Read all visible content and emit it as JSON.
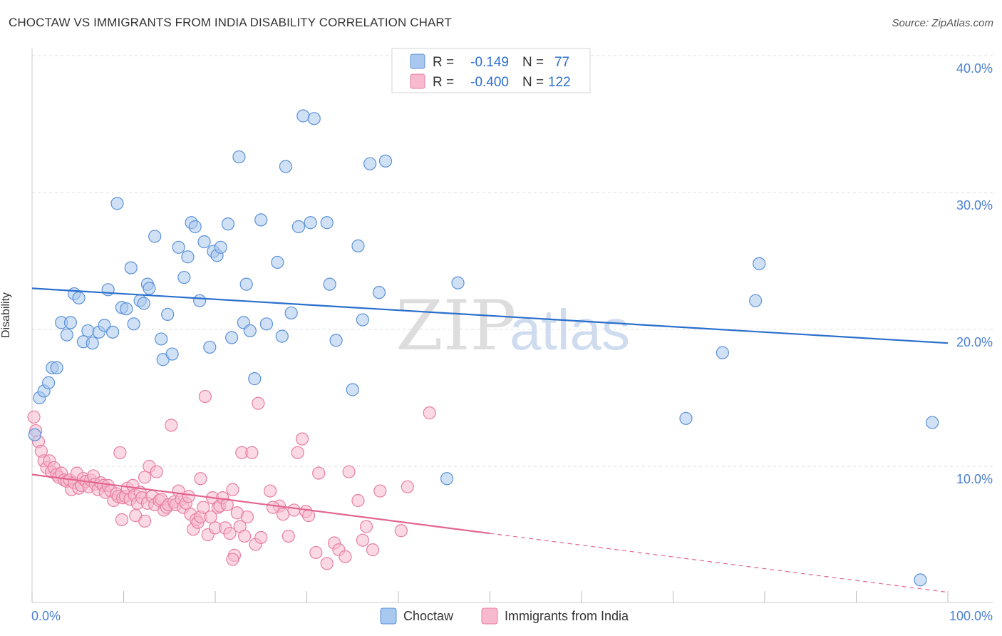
{
  "title": "CHOCTAW VS IMMIGRANTS FROM INDIA DISABILITY CORRELATION CHART",
  "source": "Source: ZipAtlas.com",
  "watermark": {
    "zip": "ZIP",
    "atlas": "atlas"
  },
  "colors": {
    "blue_fill": "#a9c8ef",
    "blue_stroke": "#5b91d8",
    "blue_line": "#2a6fcc",
    "pink_fill": "#f6b9cd",
    "pink_stroke": "#e87ea0",
    "pink_line": "#e26590",
    "grid": "#dcdcdc",
    "axis_text": "#4a7fd4"
  },
  "legend": {
    "rows": [
      {
        "r_label": "R =",
        "r_value": "-0.149",
        "n_label": "N =",
        "n_value": "77"
      },
      {
        "r_label": "R =",
        "r_value": "-0.400",
        "n_label": "N =",
        "n_value": "122"
      }
    ]
  },
  "bottom_legend": {
    "series_a": "Choctaw",
    "series_b": "Immigrants from India"
  },
  "chart_data": {
    "type": "scatter",
    "ylabel": "Disability",
    "xlabel": "",
    "xlim": [
      0,
      100
    ],
    "ylim": [
      0,
      42
    ],
    "x_tick_labels": {
      "left": "0.0%",
      "right": "100.0%"
    },
    "y_ticks": [
      10,
      20,
      30,
      40
    ],
    "y_tick_labels": [
      "10.0%",
      "20.0%",
      "30.0%",
      "40.0%"
    ],
    "series": [
      {
        "name": "Choctaw",
        "trend": {
          "x": [
            0,
            100
          ],
          "y": [
            23.0,
            19.0
          ],
          "solid_until": 100
        },
        "points": [
          [
            0.3,
            12.3
          ],
          [
            0.8,
            15.0
          ],
          [
            1.3,
            15.5
          ],
          [
            1.8,
            16.1
          ],
          [
            2.2,
            17.2
          ],
          [
            2.7,
            17.2
          ],
          [
            3.2,
            20.5
          ],
          [
            3.8,
            19.6
          ],
          [
            4.2,
            20.5
          ],
          [
            4.6,
            22.6
          ],
          [
            5.1,
            22.3
          ],
          [
            5.6,
            19.1
          ],
          [
            6.1,
            19.9
          ],
          [
            6.6,
            19.0
          ],
          [
            7.3,
            19.8
          ],
          [
            7.9,
            20.3
          ],
          [
            8.3,
            22.9
          ],
          [
            8.8,
            19.8
          ],
          [
            9.3,
            29.2
          ],
          [
            9.8,
            21.6
          ],
          [
            10.3,
            21.5
          ],
          [
            10.8,
            24.5
          ],
          [
            11.1,
            20.4
          ],
          [
            11.8,
            22.1
          ],
          [
            12.2,
            21.9
          ],
          [
            12.6,
            23.3
          ],
          [
            12.8,
            23.0
          ],
          [
            13.4,
            26.8
          ],
          [
            14.1,
            19.3
          ],
          [
            14.3,
            17.8
          ],
          [
            14.8,
            21.1
          ],
          [
            15.3,
            18.2
          ],
          [
            16.0,
            26.0
          ],
          [
            16.6,
            23.8
          ],
          [
            17.0,
            25.3
          ],
          [
            17.4,
            27.8
          ],
          [
            17.8,
            27.5
          ],
          [
            18.3,
            22.1
          ],
          [
            18.8,
            26.4
          ],
          [
            19.4,
            18.7
          ],
          [
            19.8,
            25.7
          ],
          [
            20.2,
            25.4
          ],
          [
            20.6,
            26.0
          ],
          [
            21.4,
            27.7
          ],
          [
            21.8,
            19.4
          ],
          [
            22.6,
            32.6
          ],
          [
            23.1,
            20.5
          ],
          [
            23.4,
            23.3
          ],
          [
            23.8,
            19.9
          ],
          [
            24.3,
            16.4
          ],
          [
            25.0,
            28.0
          ],
          [
            25.6,
            20.4
          ],
          [
            26.8,
            24.9
          ],
          [
            27.3,
            19.5
          ],
          [
            27.7,
            31.9
          ],
          [
            28.3,
            21.2
          ],
          [
            29.1,
            27.5
          ],
          [
            29.6,
            35.6
          ],
          [
            30.4,
            27.8
          ],
          [
            30.8,
            35.4
          ],
          [
            32.2,
            27.8
          ],
          [
            32.5,
            23.3
          ],
          [
            33.2,
            19.2
          ],
          [
            35.0,
            15.6
          ],
          [
            35.6,
            26.1
          ],
          [
            36.1,
            20.7
          ],
          [
            36.9,
            32.1
          ],
          [
            37.9,
            22.7
          ],
          [
            38.6,
            32.3
          ],
          [
            45.3,
            9.1
          ],
          [
            46.5,
            23.4
          ],
          [
            71.4,
            13.5
          ],
          [
            75.4,
            18.3
          ],
          [
            79.0,
            22.1
          ],
          [
            79.4,
            24.8
          ],
          [
            98.3,
            13.2
          ],
          [
            97.0,
            1.7
          ]
        ]
      },
      {
        "name": "Immigrants from India",
        "trend": {
          "x": [
            0,
            100
          ],
          "y": [
            9.4,
            0.8
          ],
          "solid_until": 50
        },
        "points": [
          [
            0.2,
            13.6
          ],
          [
            0.4,
            12.6
          ],
          [
            0.7,
            11.8
          ],
          [
            1.0,
            11.1
          ],
          [
            1.3,
            10.4
          ],
          [
            1.6,
            9.9
          ],
          [
            1.9,
            10.4
          ],
          [
            2.1,
            9.6
          ],
          [
            2.4,
            9.9
          ],
          [
            2.7,
            9.4
          ],
          [
            2.9,
            9.2
          ],
          [
            3.2,
            9.5
          ],
          [
            3.5,
            9.0
          ],
          [
            3.8,
            8.9
          ],
          [
            4.1,
            9.0
          ],
          [
            4.3,
            8.3
          ],
          [
            4.6,
            8.8
          ],
          [
            4.9,
            9.5
          ],
          [
            5.1,
            8.4
          ],
          [
            5.4,
            8.6
          ],
          [
            5.6,
            9.1
          ],
          [
            5.9,
            8.9
          ],
          [
            6.2,
            8.5
          ],
          [
            6.4,
            9.0
          ],
          [
            6.7,
            9.3
          ],
          [
            6.9,
            8.7
          ],
          [
            7.2,
            8.3
          ],
          [
            7.5,
            8.8
          ],
          [
            7.8,
            8.6
          ],
          [
            8.0,
            8.1
          ],
          [
            8.3,
            8.6
          ],
          [
            8.6,
            8.2
          ],
          [
            8.9,
            7.5
          ],
          [
            9.2,
            8.0
          ],
          [
            9.4,
            7.8
          ],
          [
            9.6,
            11.0
          ],
          [
            9.9,
            7.7
          ],
          [
            10.2,
            7.8
          ],
          [
            10.4,
            8.4
          ],
          [
            10.7,
            7.6
          ],
          [
            11.0,
            8.6
          ],
          [
            11.2,
            7.9
          ],
          [
            11.5,
            7.3
          ],
          [
            11.8,
            8.1
          ],
          [
            12.0,
            7.7
          ],
          [
            12.3,
            9.2
          ],
          [
            12.6,
            7.3
          ],
          [
            12.8,
            10.0
          ],
          [
            13.1,
            7.8
          ],
          [
            13.4,
            7.2
          ],
          [
            13.6,
            9.6
          ],
          [
            13.9,
            7.5
          ],
          [
            14.1,
            7.6
          ],
          [
            14.4,
            6.8
          ],
          [
            14.7,
            7.0
          ],
          [
            14.9,
            7.2
          ],
          [
            15.2,
            13.0
          ],
          [
            15.5,
            7.4
          ],
          [
            15.7,
            7.2
          ],
          [
            16.0,
            8.2
          ],
          [
            16.3,
            7.6
          ],
          [
            16.5,
            7.0
          ],
          [
            16.8,
            7.3
          ],
          [
            17.1,
            7.8
          ],
          [
            17.3,
            6.5
          ],
          [
            17.6,
            5.4
          ],
          [
            17.9,
            6.1
          ],
          [
            18.1,
            5.9
          ],
          [
            18.4,
            6.3
          ],
          [
            18.7,
            7.0
          ],
          [
            18.9,
            15.1
          ],
          [
            19.2,
            5.0
          ],
          [
            19.5,
            6.3
          ],
          [
            19.7,
            7.7
          ],
          [
            20.0,
            5.5
          ],
          [
            20.3,
            7.0
          ],
          [
            20.5,
            7.1
          ],
          [
            20.8,
            7.7
          ],
          [
            21.1,
            5.5
          ],
          [
            21.3,
            7.2
          ],
          [
            21.6,
            5.1
          ],
          [
            21.9,
            8.3
          ],
          [
            22.1,
            3.5
          ],
          [
            22.4,
            6.6
          ],
          [
            22.7,
            5.6
          ],
          [
            22.9,
            11.0
          ],
          [
            23.2,
            4.9
          ],
          [
            23.5,
            6.3
          ],
          [
            24.0,
            11.0
          ],
          [
            24.4,
            4.3
          ],
          [
            24.7,
            14.6
          ],
          [
            25.0,
            4.8
          ],
          [
            26.0,
            8.2
          ],
          [
            27.0,
            7.1
          ],
          [
            27.4,
            6.5
          ],
          [
            28.0,
            4.9
          ],
          [
            28.6,
            6.8
          ],
          [
            29.0,
            11.0
          ],
          [
            29.5,
            12.0
          ],
          [
            29.9,
            6.7
          ],
          [
            30.2,
            6.4
          ],
          [
            31.0,
            3.7
          ],
          [
            31.3,
            9.5
          ],
          [
            32.2,
            2.9
          ],
          [
            33.0,
            4.4
          ],
          [
            33.5,
            3.9
          ],
          [
            34.2,
            3.4
          ],
          [
            34.6,
            9.6
          ],
          [
            35.6,
            7.5
          ],
          [
            36.1,
            4.6
          ],
          [
            36.5,
            5.6
          ],
          [
            37.2,
            3.9
          ],
          [
            38.0,
            8.2
          ],
          [
            40.3,
            5.3
          ],
          [
            41.0,
            8.5
          ],
          [
            43.4,
            13.9
          ],
          [
            12.3,
            6.0
          ],
          [
            18.4,
            9.1
          ],
          [
            21.9,
            3.2
          ],
          [
            26.3,
            7.0
          ],
          [
            9.8,
            6.1
          ],
          [
            11.3,
            6.4
          ]
        ]
      }
    ]
  }
}
